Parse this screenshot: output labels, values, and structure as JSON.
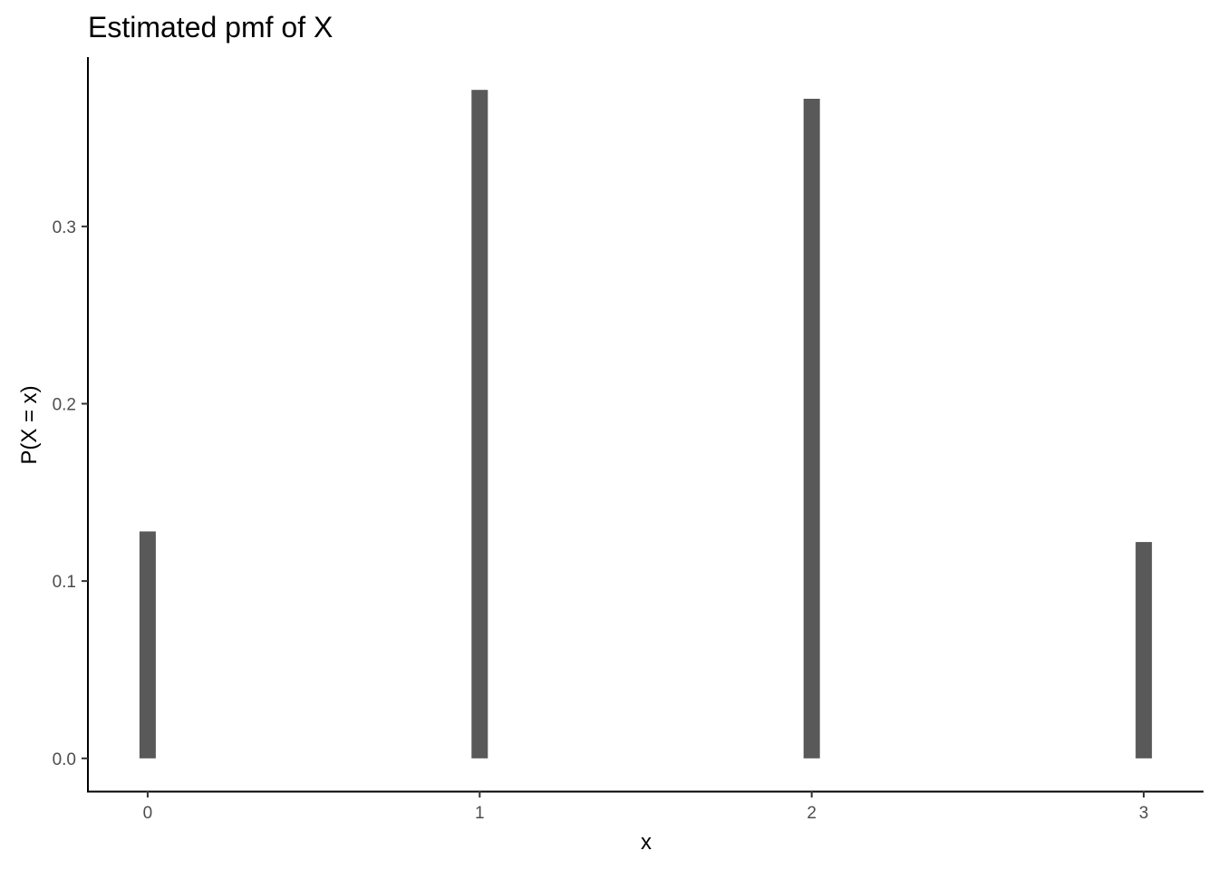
{
  "chart_data": {
    "type": "bar",
    "title": "Estimated pmf of X",
    "xlabel": "x",
    "ylabel": "P(X = x)",
    "categories": [
      "0",
      "1",
      "2",
      "3"
    ],
    "x": [
      0,
      1,
      2,
      3
    ],
    "values": [
      0.128,
      0.377,
      0.372,
      0.122
    ],
    "xlim": [
      -0.18,
      3.18
    ],
    "ylim": [
      -0.0185,
      0.3955
    ],
    "yticks": [
      0.0,
      0.1,
      0.2,
      0.3
    ],
    "ytick_labels": [
      "0.0",
      "0.1",
      "0.2",
      "0.3"
    ],
    "grid": false,
    "legend": "none",
    "bar_color": "#595959"
  }
}
